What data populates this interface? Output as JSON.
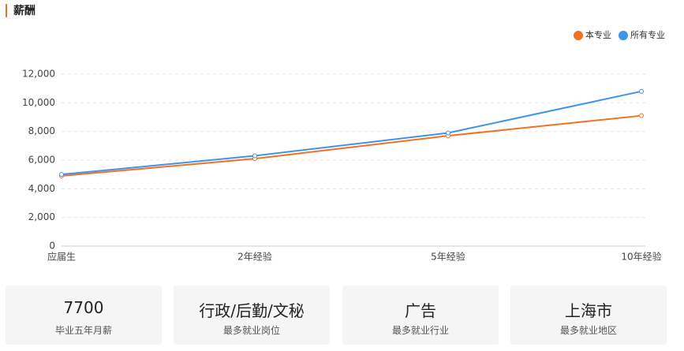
{
  "header": {
    "title": "薪酬"
  },
  "chart_data": {
    "type": "line",
    "categories": [
      "应届生",
      "2年经验",
      "5年经验",
      "10年经验"
    ],
    "series": [
      {
        "name": "本专业",
        "color": "#f07124",
        "values": [
          4900,
          6100,
          7700,
          9100
        ]
      },
      {
        "name": "所有专业",
        "color": "#3f94e4",
        "values": [
          5000,
          6300,
          7900,
          10800
        ]
      }
    ],
    "ylim": [
      0,
      12000
    ],
    "yticks": [
      0,
      {
        "value": 2000,
        "label": "2,000"
      },
      {
        "value": 4000,
        "label": "4,000"
      },
      {
        "value": 6000,
        "label": "6,000"
      },
      {
        "value": 8000,
        "label": "8,000"
      },
      {
        "value": 10000,
        "label": "10,000"
      },
      {
        "value": 12000,
        "label": "12,000"
      }
    ],
    "grid": true,
    "legend": "top-right"
  },
  "cards": [
    {
      "value": 7700,
      "label": "毕业五年月薪"
    },
    {
      "value": "行政/后勤/文秘",
      "label": "最多就业岗位"
    },
    {
      "value": "广告",
      "label": "最多就业行业"
    },
    {
      "value": "上海市",
      "label": "最多就业地区"
    }
  ]
}
